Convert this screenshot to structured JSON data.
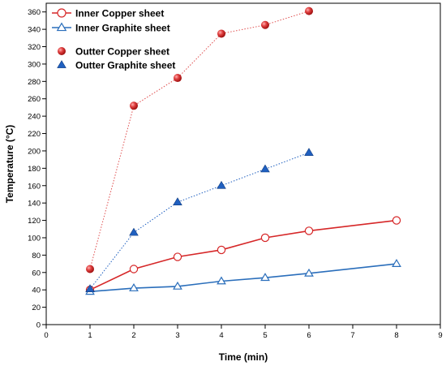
{
  "chart_data": {
    "type": "line",
    "title": "",
    "xlabel": "Time (min)",
    "ylabel": "Temperature (°C)",
    "xlim": [
      0,
      9
    ],
    "ylim": [
      0,
      370
    ],
    "xticks": [
      0,
      1,
      2,
      3,
      4,
      5,
      6,
      7,
      8,
      9
    ],
    "yticks": [
      0,
      20,
      40,
      60,
      80,
      100,
      120,
      140,
      160,
      180,
      200,
      220,
      240,
      260,
      280,
      300,
      320,
      340,
      360
    ],
    "grid": false,
    "legend_position": "top-left",
    "series": [
      {
        "name": "Inner Copper sheet",
        "color": "#d62728",
        "marker": "open-circle",
        "line": "solid",
        "x": [
          1,
          2,
          3,
          4,
          5,
          6,
          8
        ],
        "y": [
          40,
          64,
          78,
          86,
          100,
          108,
          120
        ]
      },
      {
        "name": "Inner Graphite sheet",
        "color": "#2a6ebb",
        "marker": "open-triangle",
        "line": "solid",
        "x": [
          1,
          2,
          3,
          4,
          5,
          6,
          8
        ],
        "y": [
          38,
          42,
          44,
          50,
          54,
          59,
          70
        ]
      },
      {
        "name": "Outter Copper sheet",
        "color": "#e05050",
        "marker": "filled-sphere",
        "line": "dotted",
        "x": [
          1,
          2,
          3,
          4,
          5,
          6
        ],
        "y": [
          64,
          252,
          284,
          335,
          345,
          361
        ]
      },
      {
        "name": "Outter Graphite sheet",
        "color": "#2060c0",
        "marker": "filled-triangle",
        "line": "dotted",
        "x": [
          1,
          2,
          3,
          4,
          5,
          6
        ],
        "y": [
          41,
          106,
          141,
          160,
          179,
          198
        ]
      }
    ]
  }
}
